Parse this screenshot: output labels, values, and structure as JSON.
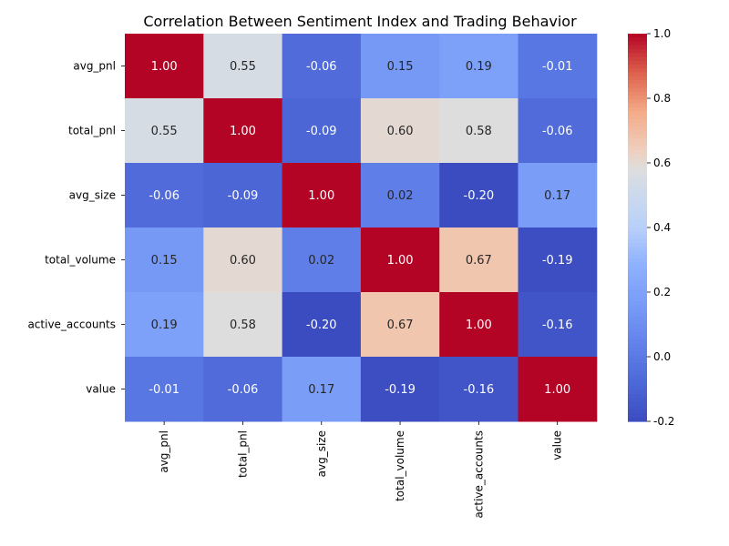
{
  "chart_data": {
    "type": "heatmap",
    "title": "Correlation Between Sentiment Index and Trading Behavior",
    "row_labels": [
      "avg_pnl",
      "total_pnl",
      "avg_size",
      "total_volume",
      "active_accounts",
      "value"
    ],
    "col_labels": [
      "avg_pnl",
      "total_pnl",
      "avg_size",
      "total_volume",
      "active_accounts",
      "value"
    ],
    "values": [
      [
        1.0,
        0.55,
        -0.06,
        0.15,
        0.19,
        -0.01
      ],
      [
        0.55,
        1.0,
        -0.09,
        0.6,
        0.58,
        -0.06
      ],
      [
        -0.06,
        -0.09,
        1.0,
        0.02,
        -0.2,
        0.17
      ],
      [
        0.15,
        0.6,
        0.02,
        1.0,
        0.67,
        -0.19
      ],
      [
        0.19,
        0.58,
        -0.2,
        0.67,
        1.0,
        -0.16
      ],
      [
        -0.01,
        -0.06,
        0.17,
        -0.19,
        -0.16,
        1.0
      ]
    ],
    "value_format": "0.00",
    "colormap": "coolwarm",
    "vmin": -0.2,
    "vmax": 1.0,
    "colorbar_ticks": [
      "-0.2",
      "0.0",
      "0.2",
      "0.4",
      "0.6",
      "0.8",
      "1.0"
    ],
    "annotations": true
  }
}
